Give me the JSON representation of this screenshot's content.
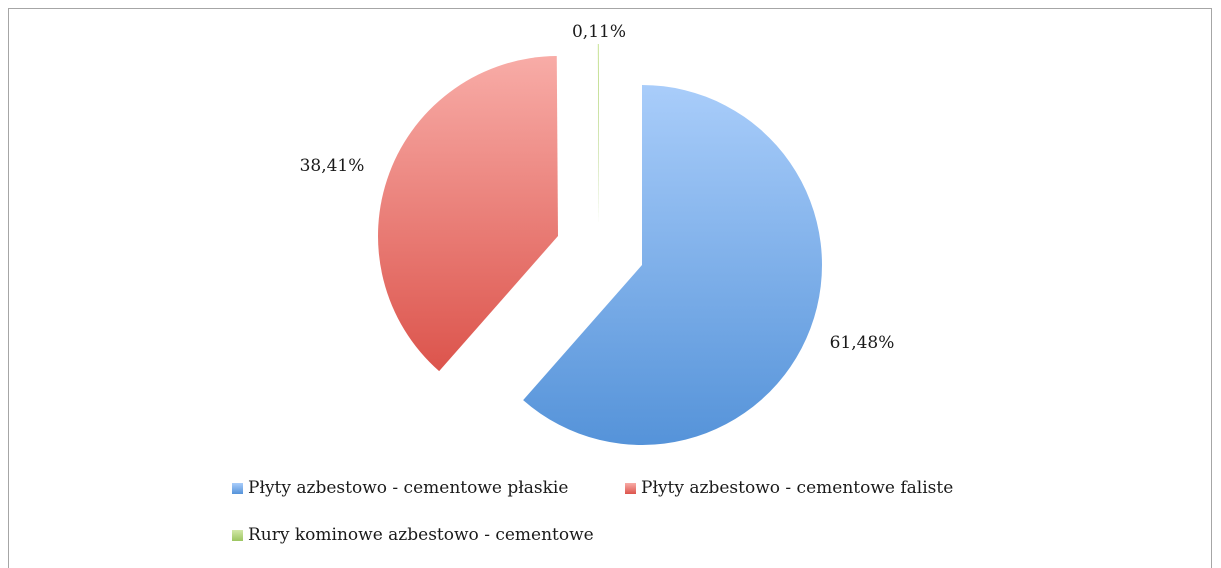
{
  "chart_data": {
    "type": "pie",
    "title": "",
    "categories": [
      "Płyty azbestowo - cementowe płaskie",
      "Płyty azbestowo - cementowe faliste",
      "Rury kominowe azbestowo - cementowe"
    ],
    "values": [
      61.48,
      38.41,
      0.11
    ],
    "data_labels": [
      "61,48%",
      "38,41%",
      "0,11%"
    ],
    "colors": [
      "#6aa0e0",
      "#e06a64",
      "#bcd98a"
    ],
    "exploded": true,
    "legend_position": "bottom"
  }
}
